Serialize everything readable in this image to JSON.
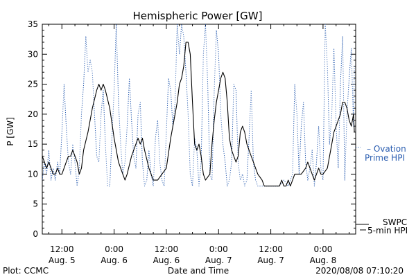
{
  "chart_data": {
    "type": "line",
    "title": "Hemispheric Power [GW]",
    "ylabel": "P [GW]",
    "xlabel": "Date and Time",
    "ylim": [
      0,
      35
    ],
    "y_ticks": [
      0,
      5,
      10,
      15,
      20,
      25,
      30,
      35
    ],
    "x_ticks": [
      {
        "time": "12:00",
        "date": "Aug. 5",
        "hour": 12
      },
      {
        "time": "0:00",
        "date": "Aug. 6",
        "hour": 24
      },
      {
        "time": "12:00",
        "date": "Aug. 6",
        "hour": 36
      },
      {
        "time": "0:00",
        "date": "Aug. 7",
        "hour": 48
      },
      {
        "time": "12:00",
        "date": "Aug. 7",
        "hour": 60
      },
      {
        "time": "0:00",
        "date": "Aug. 8",
        "hour": 72
      }
    ],
    "xlim_hours": [
      7.5,
      79.5
    ],
    "grid": false,
    "series": [
      {
        "name": "SWPC 5-min HPI",
        "legend_line1": "SWPC",
        "legend_line2": "5-min HPI",
        "color": "#000000",
        "style": "solid",
        "points": [
          [
            7.5,
            13
          ],
          [
            8,
            12
          ],
          [
            8.5,
            11
          ],
          [
            9,
            12
          ],
          [
            9.5,
            11
          ],
          [
            10,
            10
          ],
          [
            10.5,
            10
          ],
          [
            11,
            11
          ],
          [
            11.5,
            10
          ],
          [
            12,
            10
          ],
          [
            12.5,
            11
          ],
          [
            13,
            12
          ],
          [
            13.5,
            13
          ],
          [
            14,
            13
          ],
          [
            14.5,
            14
          ],
          [
            15,
            13
          ],
          [
            15.5,
            12
          ],
          [
            16,
            10
          ],
          [
            16.5,
            11
          ],
          [
            17,
            14
          ],
          [
            18,
            17
          ],
          [
            19,
            21
          ],
          [
            20,
            24
          ],
          [
            20.5,
            25
          ],
          [
            21,
            24
          ],
          [
            21.5,
            25
          ],
          [
            22,
            24
          ],
          [
            23,
            21
          ],
          [
            24,
            16
          ],
          [
            25,
            12
          ],
          [
            26,
            10
          ],
          [
            26.5,
            9
          ],
          [
            27,
            10
          ],
          [
            28,
            13
          ],
          [
            29,
            15
          ],
          [
            29.5,
            16
          ],
          [
            30,
            15
          ],
          [
            30.5,
            16
          ],
          [
            31,
            14
          ],
          [
            32,
            11
          ],
          [
            32.5,
            10
          ],
          [
            33,
            9
          ],
          [
            34,
            9
          ],
          [
            35,
            10
          ],
          [
            36,
            11
          ],
          [
            37,
            16
          ],
          [
            38,
            20
          ],
          [
            38.5,
            22
          ],
          [
            39,
            25
          ],
          [
            39.5,
            26
          ],
          [
            40,
            28
          ],
          [
            40.5,
            32
          ],
          [
            41,
            32
          ],
          [
            41.5,
            30
          ],
          [
            42,
            22
          ],
          [
            42.5,
            15
          ],
          [
            43,
            14
          ],
          [
            43.5,
            15
          ],
          [
            44,
            13
          ],
          [
            44.5,
            10
          ],
          [
            45,
            9
          ],
          [
            46,
            10
          ],
          [
            46.5,
            15
          ],
          [
            47,
            19
          ],
          [
            47.5,
            22
          ],
          [
            48,
            24
          ],
          [
            48.5,
            26
          ],
          [
            49,
            27
          ],
          [
            49.5,
            26
          ],
          [
            50,
            22
          ],
          [
            50.5,
            16
          ],
          [
            51,
            14
          ],
          [
            51.5,
            13
          ],
          [
            52,
            12
          ],
          [
            52.5,
            13
          ],
          [
            53,
            17
          ],
          [
            53.5,
            18
          ],
          [
            54,
            17
          ],
          [
            54.5,
            15
          ],
          [
            55,
            14
          ],
          [
            55.5,
            13
          ],
          [
            56,
            12
          ],
          [
            56.5,
            11
          ],
          [
            57,
            10
          ],
          [
            58,
            9
          ],
          [
            58.5,
            8
          ],
          [
            59,
            8
          ],
          [
            60,
            8
          ],
          [
            61,
            8
          ],
          [
            62,
            8
          ],
          [
            62.5,
            9
          ],
          [
            63,
            8
          ],
          [
            63.5,
            8
          ],
          [
            64,
            9
          ],
          [
            64.5,
            8
          ],
          [
            65,
            9
          ],
          [
            65.5,
            10
          ],
          [
            66,
            10
          ],
          [
            67,
            10
          ],
          [
            68,
            11
          ],
          [
            68.5,
            12
          ],
          [
            69,
            11
          ],
          [
            69.5,
            10
          ],
          [
            70,
            9
          ],
          [
            70.5,
            10
          ],
          [
            71,
            11
          ],
          [
            71.5,
            10
          ],
          [
            72,
            10
          ],
          [
            73,
            11
          ],
          [
            74,
            15
          ],
          [
            74.5,
            17
          ],
          [
            75,
            18
          ],
          [
            75.5,
            19
          ],
          [
            76,
            20
          ],
          [
            76.5,
            22
          ],
          [
            77,
            22
          ],
          [
            77.5,
            21
          ],
          [
            78,
            19
          ],
          [
            78.5,
            18
          ],
          [
            79,
            20
          ],
          [
            79.2,
            17
          ]
        ]
      },
      {
        "name": "Ovation Prime HPI",
        "legend_line1": "Ovation",
        "legend_line2": "Prime HPI",
        "color": "#2a5db0",
        "style": "dotted",
        "points": [
          [
            7.5,
            9
          ],
          [
            8,
            12
          ],
          [
            8.5,
            10
          ],
          [
            9,
            14
          ],
          [
            9.5,
            9
          ],
          [
            10,
            11
          ],
          [
            10.5,
            9
          ],
          [
            11,
            12
          ],
          [
            11.5,
            10
          ],
          [
            12,
            17
          ],
          [
            12.5,
            25
          ],
          [
            13,
            18
          ],
          [
            13.5,
            12
          ],
          [
            14,
            10
          ],
          [
            14.5,
            15
          ],
          [
            15,
            12
          ],
          [
            15.5,
            8
          ],
          [
            16,
            11
          ],
          [
            16.5,
            20
          ],
          [
            17,
            25
          ],
          [
            17.5,
            33
          ],
          [
            18,
            27
          ],
          [
            18.5,
            29
          ],
          [
            19,
            27
          ],
          [
            19.5,
            20
          ],
          [
            20,
            13
          ],
          [
            20.5,
            12
          ],
          [
            21,
            20
          ],
          [
            21.5,
            24
          ],
          [
            22,
            15
          ],
          [
            22.5,
            8
          ],
          [
            23,
            8
          ],
          [
            23.5,
            16
          ],
          [
            24,
            24
          ],
          [
            24.5,
            35
          ],
          [
            25,
            22
          ],
          [
            25.5,
            15
          ],
          [
            26,
            10
          ],
          [
            26.5,
            12
          ],
          [
            27,
            18
          ],
          [
            27.5,
            26
          ],
          [
            28,
            19
          ],
          [
            28.5,
            13
          ],
          [
            29,
            11
          ],
          [
            29.5,
            20
          ],
          [
            30,
            22
          ],
          [
            30.5,
            12
          ],
          [
            31,
            8
          ],
          [
            31.5,
            9
          ],
          [
            32,
            14
          ],
          [
            32.5,
            10
          ],
          [
            33,
            8
          ],
          [
            33.5,
            16
          ],
          [
            34,
            19
          ],
          [
            34.5,
            12
          ],
          [
            35,
            9
          ],
          [
            35.5,
            8
          ],
          [
            36,
            17
          ],
          [
            36.5,
            26
          ],
          [
            37,
            24
          ],
          [
            37.5,
            18
          ],
          [
            38,
            22
          ],
          [
            38.5,
            35
          ],
          [
            39,
            30
          ],
          [
            39.5,
            35
          ],
          [
            40,
            33
          ],
          [
            40.5,
            27
          ],
          [
            41,
            20
          ],
          [
            41.5,
            10
          ],
          [
            42,
            8
          ],
          [
            42.5,
            16
          ],
          [
            43,
            14
          ],
          [
            43.5,
            8
          ],
          [
            44,
            12
          ],
          [
            44.5,
            30
          ],
          [
            45,
            35
          ],
          [
            45.5,
            25
          ],
          [
            46,
            10
          ],
          [
            46.5,
            9
          ],
          [
            47,
            24
          ],
          [
            47.5,
            34
          ],
          [
            48,
            30
          ],
          [
            48.5,
            20
          ],
          [
            49,
            15
          ],
          [
            49.5,
            12
          ],
          [
            50,
            8
          ],
          [
            50.5,
            9
          ],
          [
            51,
            12
          ],
          [
            51.5,
            25
          ],
          [
            52,
            24
          ],
          [
            52.5,
            12
          ],
          [
            53,
            9
          ],
          [
            53.5,
            10
          ],
          [
            54,
            8
          ],
          [
            54.5,
            9
          ],
          [
            55,
            16
          ],
          [
            55.5,
            24
          ],
          [
            56,
            12
          ],
          [
            56.5,
            9
          ],
          [
            57,
            8
          ],
          [
            58,
            8
          ],
          [
            59,
            8
          ],
          [
            60,
            8
          ],
          [
            61,
            8
          ],
          [
            62,
            8
          ],
          [
            63,
            9
          ],
          [
            64,
            8
          ],
          [
            65,
            10
          ],
          [
            65.5,
            25
          ],
          [
            66,
            20
          ],
          [
            66.5,
            10
          ],
          [
            67,
            18
          ],
          [
            67.5,
            22
          ],
          [
            68,
            12
          ],
          [
            68.5,
            9
          ],
          [
            69,
            11
          ],
          [
            69.5,
            14
          ],
          [
            70,
            8
          ],
          [
            70.5,
            12
          ],
          [
            71,
            18
          ],
          [
            71.5,
            11
          ],
          [
            72,
            9
          ],
          [
            72.5,
            35
          ],
          [
            73,
            28
          ],
          [
            73.5,
            15
          ],
          [
            74,
            20
          ],
          [
            74.5,
            31
          ],
          [
            75,
            18
          ],
          [
            75.5,
            11
          ],
          [
            76,
            25
          ],
          [
            76.5,
            33
          ],
          [
            77,
            9
          ],
          [
            77.5,
            20
          ],
          [
            78,
            26
          ],
          [
            78.5,
            31
          ],
          [
            79,
            18
          ],
          [
            79.2,
            28
          ]
        ]
      }
    ]
  },
  "footer": {
    "left": "Plot: CCMC",
    "timestamp": "2020/08/08 07:10:20"
  }
}
